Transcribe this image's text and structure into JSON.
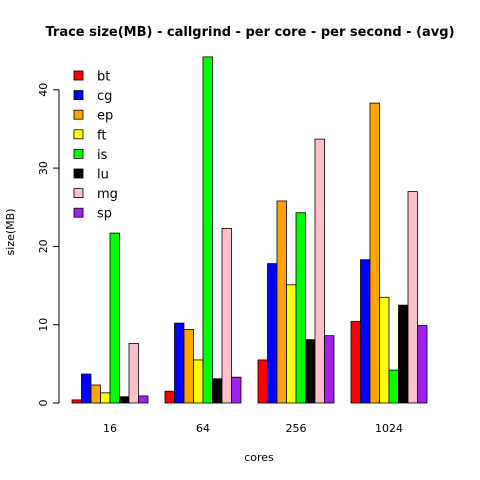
{
  "chart_data": {
    "type": "bar",
    "title": "Trace size(MB) - callgrind - per core - per second - (avg)",
    "xlabel": "cores",
    "ylabel": "size(MB)",
    "categories": [
      "16",
      "64",
      "256",
      "1024"
    ],
    "ylim": [
      0,
      45
    ],
    "yticks": [
      0,
      10,
      20,
      30,
      40
    ],
    "grid": false,
    "legend": "top-left",
    "series": [
      {
        "name": "bt",
        "color": "#ff0000",
        "values": [
          0.4,
          1.5,
          5.5,
          10.4
        ]
      },
      {
        "name": "cg",
        "color": "#0000ff",
        "values": [
          3.7,
          10.2,
          17.8,
          18.3
        ]
      },
      {
        "name": "ep",
        "color": "#ffa500",
        "values": [
          2.3,
          9.4,
          25.8,
          38.3
        ]
      },
      {
        "name": "ft",
        "color": "#ffff00",
        "values": [
          1.3,
          5.5,
          15.1,
          13.5
        ]
      },
      {
        "name": "is",
        "color": "#00ff00",
        "values": [
          21.7,
          44.2,
          24.3,
          4.2
        ]
      },
      {
        "name": "lu",
        "color": "#000000",
        "values": [
          0.8,
          3.1,
          8.1,
          12.5
        ]
      },
      {
        "name": "mg",
        "color": "#ffc0cb",
        "values": [
          7.6,
          22.3,
          33.7,
          27.0
        ]
      },
      {
        "name": "sp",
        "color": "#a020f0",
        "values": [
          0.9,
          3.3,
          8.6,
          9.9
        ]
      }
    ]
  }
}
